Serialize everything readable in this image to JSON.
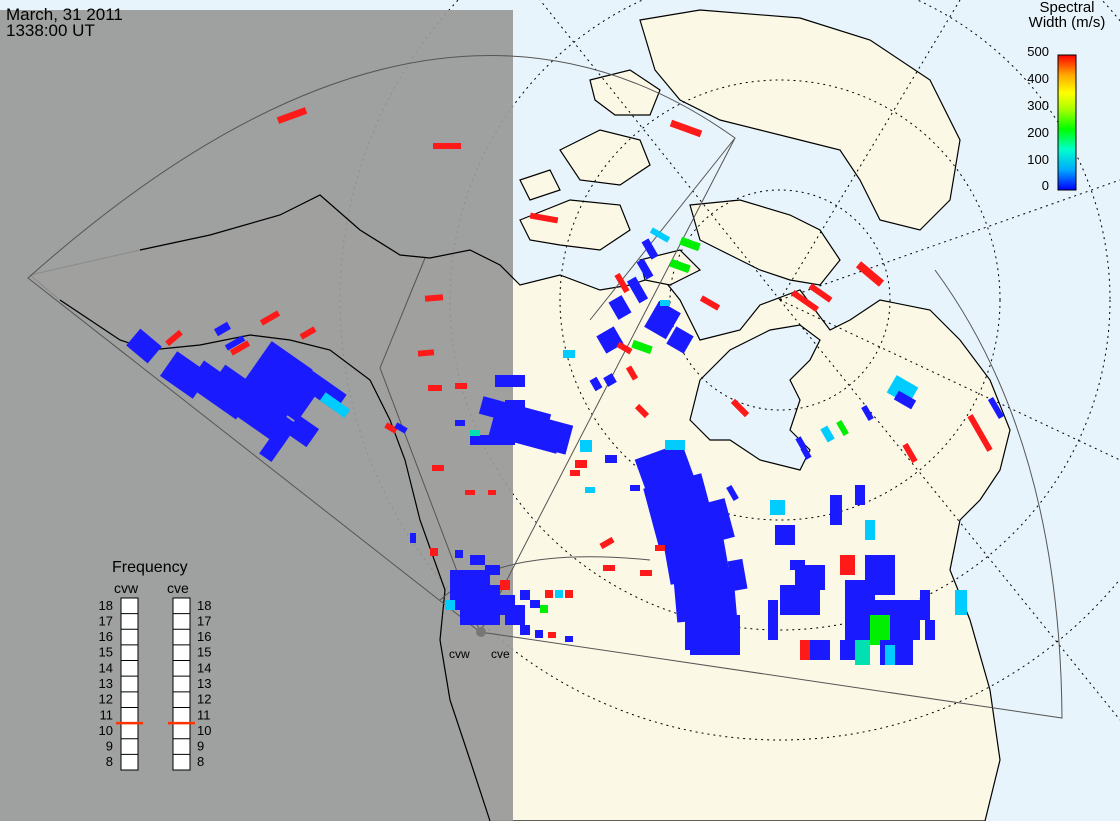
{
  "header": {
    "date": "March, 31 2011",
    "time": "1338:00 UT"
  },
  "colorbar": {
    "title_line1": "Spectral",
    "title_line2": "Width (m/s)",
    "ticks": [
      "500",
      "400",
      "300",
      "200",
      "100",
      "0"
    ],
    "min": 0,
    "max": 500,
    "colors": [
      "#0000ff",
      "#00aaff",
      "#00ffcc",
      "#00ff00",
      "#aaff00",
      "#ffff00",
      "#ffaa00",
      "#ff0000"
    ]
  },
  "frequency_panel": {
    "title": "Frequency",
    "radars": [
      {
        "name": "cvw",
        "frequency_mhz": 10.5
      },
      {
        "name": "cve",
        "frequency_mhz": 10.5
      }
    ],
    "scale": [
      "18",
      "17",
      "16",
      "15",
      "14",
      "13",
      "12",
      "11",
      "10",
      "9",
      "8"
    ]
  },
  "radar_sites": [
    "cvw",
    "cve"
  ],
  "colors": {
    "night_shade": "#999999",
    "land": "#fbf8e6",
    "ocean": "#e8f4fb",
    "scatter_blue": "#1a1aff",
    "scatter_red": "#ff1a1a",
    "frequency_marker": "#ff3300"
  }
}
